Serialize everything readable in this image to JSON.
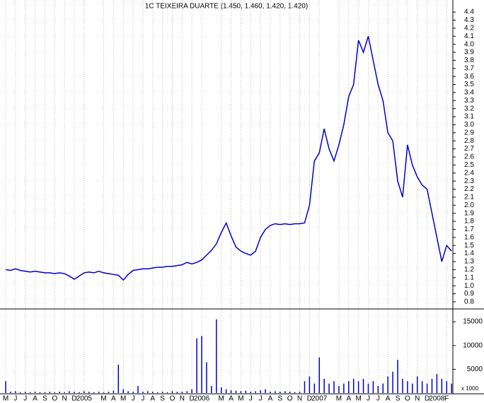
{
  "chart_data": {
    "type": "stock",
    "title": "1C TEIXEIRA DUARTE (1.450, 1.460, 1.420, 1.420)",
    "x": [
      0,
      0.5,
      1,
      1.5,
      2,
      2.5,
      3,
      3.5,
      4,
      4.5,
      5,
      5.5,
      6,
      6.5,
      7,
      7.5,
      8,
      8.5,
      9,
      9.5,
      10,
      10.5,
      11,
      11.5,
      12,
      12.5,
      13,
      13.5,
      14,
      14.5,
      15,
      15.5,
      16,
      16.5,
      17,
      17.5,
      18,
      18.5,
      19,
      19.5,
      20,
      20.5,
      21,
      21.5,
      22,
      22.5,
      23,
      23.5,
      24,
      24.5,
      25,
      25.5,
      26,
      26.5,
      27,
      27.5,
      28,
      28.5,
      29,
      29.5,
      30,
      30.5,
      31,
      31.5,
      32,
      32.5,
      33,
      33.5,
      34,
      34.5,
      35,
      35.5,
      36,
      36.5,
      37,
      37.5,
      38,
      38.5,
      39,
      39.5,
      40,
      40.5,
      41,
      41.5,
      42,
      42.5,
      43,
      43.5,
      44,
      44.5,
      45,
      45.5
    ],
    "xlim": [
      -0.58,
      45.63
    ],
    "xticks": [
      {
        "value": 0,
        "label": "M"
      },
      {
        "value": 1,
        "label": "J"
      },
      {
        "value": 2,
        "label": "J"
      },
      {
        "value": 3,
        "label": "A"
      },
      {
        "value": 4,
        "label": "S"
      },
      {
        "value": 5,
        "label": "O"
      },
      {
        "value": 6,
        "label": "N"
      },
      {
        "value": 7,
        "label": "D"
      },
      {
        "value": 8,
        "label": "2005"
      },
      {
        "value": 10,
        "label": "M"
      },
      {
        "value": 11,
        "label": "A"
      },
      {
        "value": 12,
        "label": "M"
      },
      {
        "value": 13,
        "label": "J"
      },
      {
        "value": 14,
        "label": "J"
      },
      {
        "value": 15,
        "label": "A"
      },
      {
        "value": 16,
        "label": "S"
      },
      {
        "value": 17,
        "label": "O"
      },
      {
        "value": 18,
        "label": "N"
      },
      {
        "value": 19,
        "label": "D"
      },
      {
        "value": 20,
        "label": "2006"
      },
      {
        "value": 22,
        "label": "M"
      },
      {
        "value": 23,
        "label": "A"
      },
      {
        "value": 24,
        "label": "M"
      },
      {
        "value": 25,
        "label": "J"
      },
      {
        "value": 26,
        "label": "J"
      },
      {
        "value": 27,
        "label": "A"
      },
      {
        "value": 28,
        "label": "S"
      },
      {
        "value": 29,
        "label": "O"
      },
      {
        "value": 30,
        "label": "N"
      },
      {
        "value": 31,
        "label": "D"
      },
      {
        "value": 32,
        "label": "2007"
      },
      {
        "value": 34,
        "label": "M"
      },
      {
        "value": 35,
        "label": "A"
      },
      {
        "value": 36,
        "label": "M"
      },
      {
        "value": 37,
        "label": "J"
      },
      {
        "value": 38,
        "label": "J"
      },
      {
        "value": 39,
        "label": "A"
      },
      {
        "value": 40,
        "label": "S"
      },
      {
        "value": 41,
        "label": "O"
      },
      {
        "value": 42,
        "label": "N"
      },
      {
        "value": 43,
        "label": "D"
      },
      {
        "value": 44,
        "label": "2008"
      },
      {
        "value": 45,
        "label": "F"
      }
    ],
    "ylim": [
      0.72,
      4.55
    ],
    "yticks": [
      0.8,
      0.9,
      {
        "value": 1,
        "label": "1.0"
      },
      1.1,
      1.2,
      1.3,
      1.4,
      1.5,
      1.6,
      1.7,
      1.8,
      1.9,
      {
        "value": 2,
        "label": "2.0"
      },
      2.1,
      2.2,
      2.3,
      2.4,
      2.5,
      2.6,
      2.7,
      2.8,
      2.9,
      {
        "value": 3,
        "label": "3.0"
      },
      3.1,
      3.2,
      3.3,
      3.4,
      3.5,
      3.6,
      3.7,
      3.8,
      3.9,
      {
        "value": 4,
        "label": "4.0"
      },
      4.1,
      4.2,
      4.3,
      4.4
    ],
    "y2lim": [
      0,
      16500
    ],
    "y2ticks": [
      5000,
      10000,
      15000
    ],
    "y2label": "x 1000",
    "grid": true,
    "series": [
      {
        "color": "#0000cc",
        "values": [
          1.2,
          1.19,
          1.21,
          1.19,
          1.18,
          1.17,
          1.18,
          1.17,
          1.16,
          1.16,
          1.15,
          1.16,
          1.15,
          1.12,
          1.08,
          1.12,
          1.16,
          1.17,
          1.16,
          1.18,
          1.16,
          1.15,
          1.14,
          1.13,
          1.07,
          1.14,
          1.19,
          1.2,
          1.21,
          1.21,
          1.22,
          1.23,
          1.23,
          1.24,
          1.24,
          1.25,
          1.26,
          1.29,
          1.27,
          1.29,
          1.32,
          1.38,
          1.44,
          1.52,
          1.66,
          1.78,
          1.62,
          1.48,
          1.43,
          1.4,
          1.38,
          1.43,
          1.6,
          1.7,
          1.75,
          1.77,
          1.76,
          1.77,
          1.76,
          1.77,
          1.77,
          1.78,
          2.0,
          2.55,
          2.65,
          2.95,
          2.7,
          2.55,
          2.75,
          3.0,
          3.35,
          3.5,
          4.05,
          3.9,
          4.1,
          3.8,
          3.5,
          3.3,
          2.9,
          2.8,
          2.3,
          2.1,
          2.75,
          2.5,
          2.35,
          2.25,
          2.2,
          1.9,
          1.6,
          1.3,
          1.5,
          1.43
        ]
      },
      {
        "color": "#0000cc",
        "axis": "y2",
        "values": [
          2500,
          300,
          400,
          200,
          300,
          200,
          300,
          200,
          200,
          300,
          200,
          300,
          200,
          400,
          300,
          200,
          400,
          300,
          200,
          300,
          200,
          300,
          500,
          6000,
          800,
          400,
          300,
          1500,
          300,
          400,
          300,
          200,
          300,
          200,
          400,
          300,
          300,
          400,
          800,
          11500,
          12000,
          6500,
          1500,
          15500,
          1200,
          800,
          600,
          500,
          400,
          500,
          300,
          400,
          600,
          800,
          300,
          400,
          300,
          400,
          300,
          200,
          300,
          2500,
          3500,
          2000,
          7500,
          3000,
          2000,
          2500,
          1500,
          2000,
          2500,
          3000,
          2500,
          3000,
          2000,
          2500,
          1500,
          2000,
          3500,
          4500,
          7000,
          3000,
          2500,
          2000,
          3500,
          2500,
          2000,
          3000,
          4000,
          3000,
          2500,
          2000
        ]
      }
    ]
  }
}
